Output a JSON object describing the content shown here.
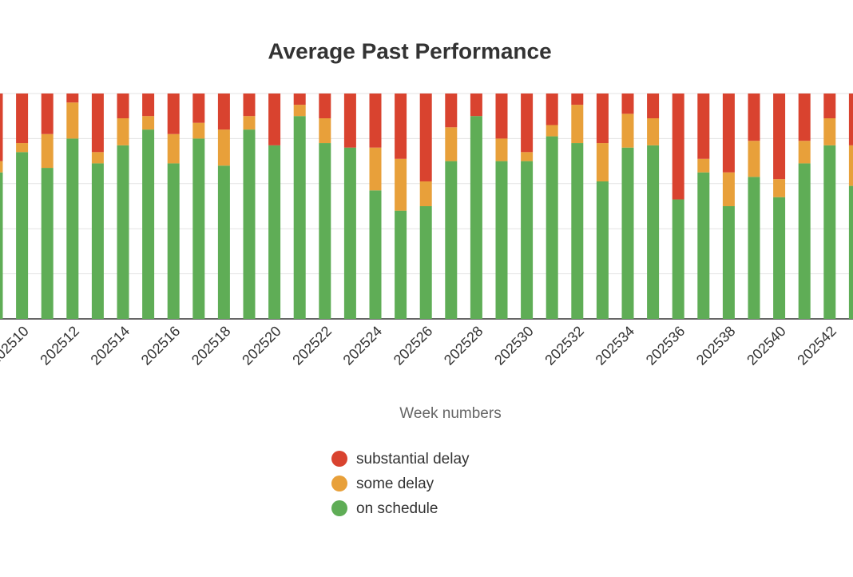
{
  "chart_data": {
    "type": "bar",
    "stacked": true,
    "title": "Average Past Performance",
    "x_label": "Week numbers",
    "categories": [
      null,
      "202510",
      null,
      "202512",
      null,
      "202514",
      null,
      "202516",
      null,
      "202518",
      null,
      "202520",
      null,
      "202522",
      null,
      "202524",
      null,
      "202526",
      null,
      "202528",
      null,
      "202530",
      null,
      "202532",
      null,
      "202534",
      null,
      "202536",
      null,
      "202538",
      null,
      "202540",
      null,
      "202542",
      null
    ],
    "series": [
      {
        "name": "substantial delay",
        "color": "#d9432f",
        "values": [
          30,
          22,
          18,
          4,
          26,
          11,
          10,
          18,
          13,
          16,
          10,
          23,
          5,
          11,
          24,
          24,
          29,
          39,
          15,
          10,
          20,
          26,
          14,
          5,
          22,
          9,
          11,
          47,
          29,
          35,
          21,
          38,
          21,
          11,
          23
        ]
      },
      {
        "name": "some delay",
        "color": "#e8a03a",
        "values": [
          5,
          4,
          15,
          16,
          5,
          12,
          6,
          13,
          7,
          16,
          6,
          0,
          5,
          11,
          0,
          19,
          23,
          11,
          15,
          0,
          10,
          4,
          5,
          17,
          17,
          15,
          12,
          0,
          6,
          15,
          16,
          8,
          10,
          12,
          18
        ]
      },
      {
        "name": "on schedule",
        "color": "#5fad56",
        "values": [
          65,
          74,
          67,
          80,
          69,
          77,
          84,
          69,
          80,
          68,
          84,
          77,
          90,
          78,
          76,
          57,
          48,
          50,
          70,
          90,
          70,
          70,
          81,
          78,
          61,
          76,
          77,
          53,
          65,
          50,
          63,
          54,
          69,
          77,
          59
        ]
      }
    ],
    "ylim": [
      0,
      100
    ],
    "yticks": [
      0,
      20,
      40,
      60,
      80,
      100
    ],
    "grid": true
  }
}
